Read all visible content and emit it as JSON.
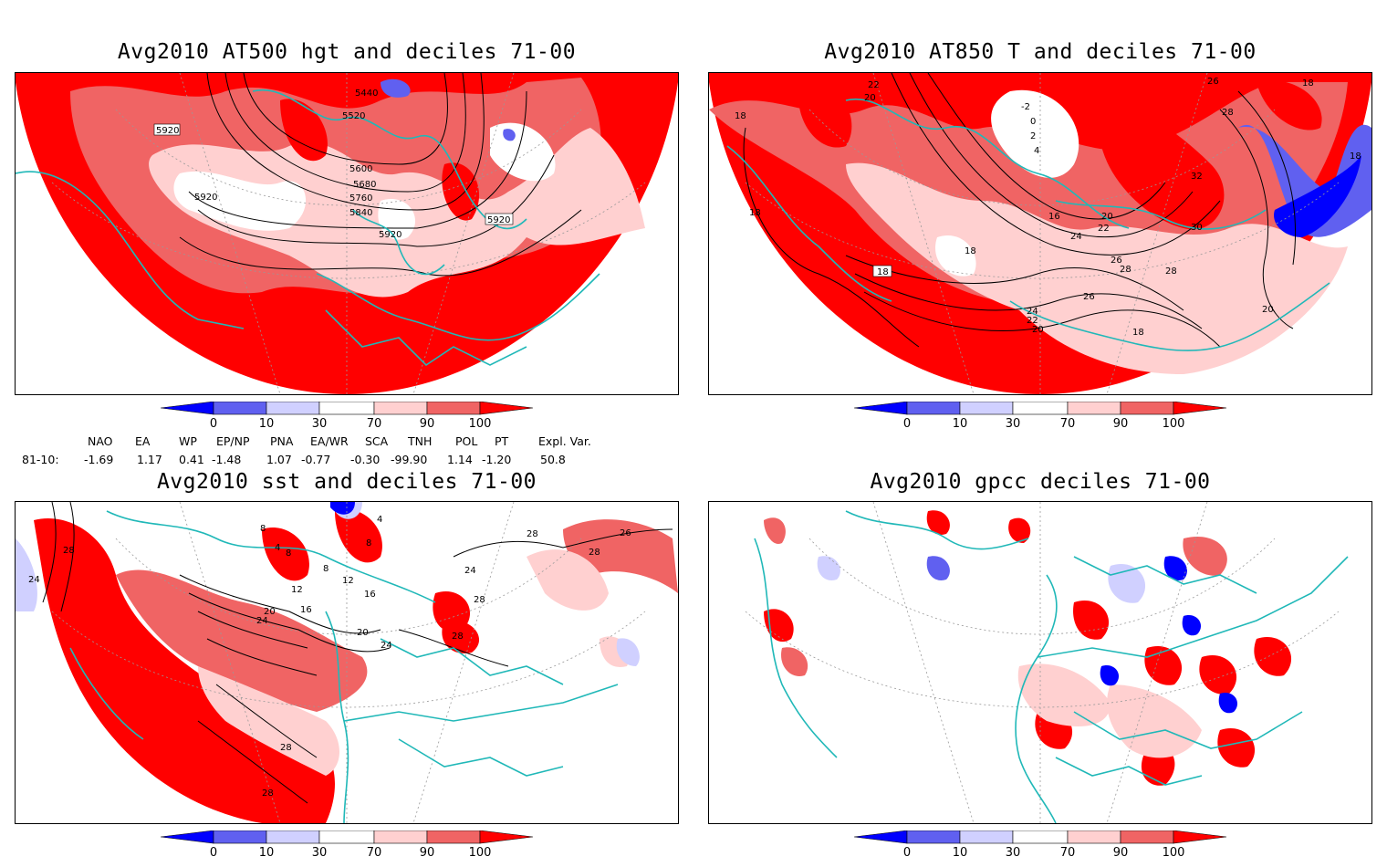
{
  "panels": [
    {
      "id": "p1",
      "title": "Avg2010 AT500 hgt and deciles 71-00",
      "contour_labels": [
        "5440",
        "5520",
        "5920",
        "5600",
        "5680",
        "5760",
        "5840",
        "5920",
        "5920",
        "5920"
      ]
    },
    {
      "id": "p2",
      "title": "Avg2010 AT850 T and deciles 71-00",
      "contour_labels": [
        "22",
        "20",
        "-2",
        "0",
        "2",
        "4",
        "18",
        "18",
        "18",
        "16",
        "20",
        "22",
        "24",
        "26",
        "28",
        "28",
        "26",
        "24",
        "22",
        "20",
        "18",
        "18",
        "32",
        "30",
        "26",
        "28",
        "20",
        "18",
        "18"
      ]
    },
    {
      "id": "p3",
      "title": "Avg2010 sst and deciles 71-00",
      "contour_labels": [
        "28",
        "24",
        "8",
        "4",
        "8",
        "12",
        "8",
        "12",
        "16",
        "20",
        "24",
        "20",
        "16",
        "24",
        "24",
        "28",
        "28",
        "26",
        "28",
        "28",
        "28",
        "28",
        "4",
        "8"
      ]
    },
    {
      "id": "p4",
      "title": "Avg2010 gpcc deciles 71-00",
      "contour_labels": []
    }
  ],
  "colorbar": {
    "ticks": [
      "0",
      "10",
      "30",
      "70",
      "90",
      "100"
    ],
    "colors": [
      "#0000ff",
      "#6060f0",
      "#d0d0ff",
      "#ffffff",
      "#ffd0d0",
      "#f06464",
      "#ff0000"
    ]
  },
  "indices": {
    "headers": [
      "NAO",
      "EA",
      "WP",
      "EP/NP",
      "PNA",
      "EA/WR",
      "SCA",
      "TNH",
      "POL",
      "PT",
      "Expl. Var."
    ],
    "row_label": "81-10:",
    "values": [
      "-1.69",
      "1.17",
      "0.41",
      "-1.48",
      "1.07",
      "-0.77",
      "-0.30",
      "-99.90",
      "1.14",
      "-1.20",
      "50.8"
    ]
  },
  "colors": {
    "coast": "#20b8b8",
    "contour": "#000000",
    "graticule": "#999999",
    "red_strong": "#ff0000",
    "red_mid": "#f06464",
    "red_light": "#ffd0d0",
    "blue_strong": "#0000ff",
    "blue_mid": "#6060f0",
    "blue_light": "#d0d0ff"
  }
}
